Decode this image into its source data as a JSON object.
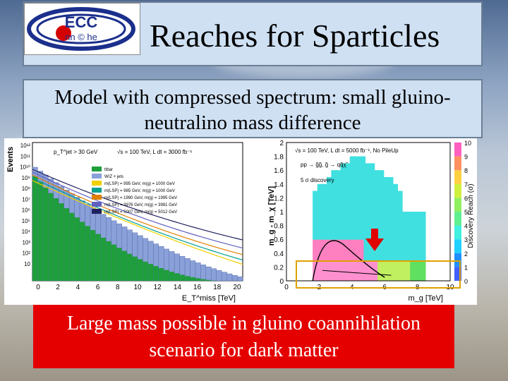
{
  "slide": {
    "title": "Reaches for Sparticles",
    "subtitle": "Model with compressed spectrum: small gluino-neutralino mass difference",
    "subtitle_line1": "Model with compressed spectrum: small gluino-",
    "subtitle_line2": "neutralino mass difference",
    "conclusion_line1": "Large mass possible in gluino coannihilation",
    "conclusion_line2": "scenario for dark matter"
  },
  "logo": {
    "text_top": "ECC",
    "text_bottom": "nn © he",
    "colors": {
      "ring": "#1b2f8c",
      "accent": "#d40000"
    }
  },
  "chart_data": [
    {
      "type": "bar",
      "ylabel": "Events",
      "xlabel": "E_T^miss [TeV]",
      "cut_label": "p_T^jet > 30 GeV",
      "run_label": "√s = 100 TeV, L dt = 3000 fb⁻¹",
      "x_ticks": [
        "0",
        "2",
        "4",
        "6",
        "8",
        "10",
        "12",
        "14",
        "16",
        "18",
        "20"
      ],
      "y_ticks": [
        "10",
        "10²",
        "10³",
        "10⁴",
        "10⁵",
        "10⁶",
        "10⁷",
        "10⁸",
        "10⁹",
        "10¹⁰",
        "10¹¹",
        "10¹²"
      ],
      "legend": [
        "ttbar",
        "W/Z + jets",
        "m(LSP) = 995 GeV, m(g) = 1000 GeV",
        "m(LSP) = 985 GeV, m(g) = 1000 GeV",
        "m(LSP) = 1990 GeV, m(g) = 1995 GeV",
        "m(LSP) = 3976 GeV, m(g) = 3981 GeV",
        "m(LSP) = 5007 GeV, m(g) = 5012 GeV"
      ],
      "series": [
        {
          "name": "ttbar",
          "color": "#1f9e3c"
        },
        {
          "name": "W/Z + jets",
          "color": "#8aa0d8"
        },
        {
          "name": "m(LSP) = 995 GeV, m(g) = 1000 GeV",
          "color": "#f0d000"
        },
        {
          "name": "m(LSP) = 985 GeV, m(g) = 1000 GeV",
          "color": "#00a090"
        },
        {
          "name": "m(LSP) = 1990 GeV, m(g) = 1995 GeV",
          "color": "#e08000"
        },
        {
          "name": "m(LSP) = 3976 GeV, m(g) = 3981 GeV",
          "color": "#6060c0"
        },
        {
          "name": "m(LSP) = 5007 GeV, m(g) = 5012 GeV",
          "color": "#202060"
        }
      ]
    },
    {
      "type": "heatmap",
      "xlabel": "m_g [TeV]",
      "ylabel": "m_g - m_χ [TeV]",
      "zlabel": "Discovery Reach (σ)",
      "run_label": "√s = 100 TeV, L dt = 5000 fb⁻¹, No PileUp",
      "process_label": "pp → g̃g̃, g̃ → qq̃χ̃",
      "discovery_label": "5 σ discovery",
      "x_ticks": [
        "0",
        "2",
        "4",
        "6",
        "8",
        "10"
      ],
      "y_ticks": [
        "0",
        "0.2",
        "0.4",
        "0.6",
        "0.8",
        "1",
        "1.2",
        "1.4",
        "1.6",
        "1.8",
        "2"
      ],
      "z_ticks": [
        "0",
        "1",
        "2",
        "3",
        "4",
        "5",
        "6",
        "7",
        "8",
        "9",
        "10"
      ],
      "xlim": [
        0,
        10
      ],
      "ylim": [
        0,
        2
      ],
      "zlim": [
        0,
        10
      ]
    }
  ]
}
